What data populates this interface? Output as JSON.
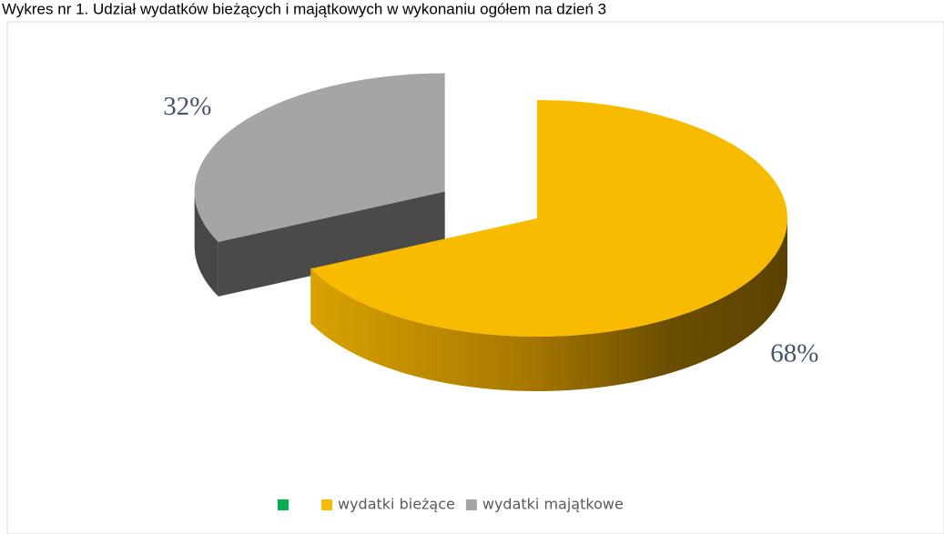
{
  "chart_data": {
    "type": "pie3d",
    "title": "Wykres nr 1. Udział wydatków bieżących i majątkowych w wykonaniu ogółem na dzień 3",
    "categories": [
      null,
      "wydatki bieżące",
      "wydatki majątkowe"
    ],
    "values": [
      0,
      68,
      32
    ],
    "value_labels": [
      null,
      "68%",
      "32%"
    ],
    "colors": [
      "#00b050",
      "#f8bb00",
      "#a5a5a5"
    ],
    "exploded": [
      false,
      false,
      true
    ],
    "legend": "bottom"
  }
}
